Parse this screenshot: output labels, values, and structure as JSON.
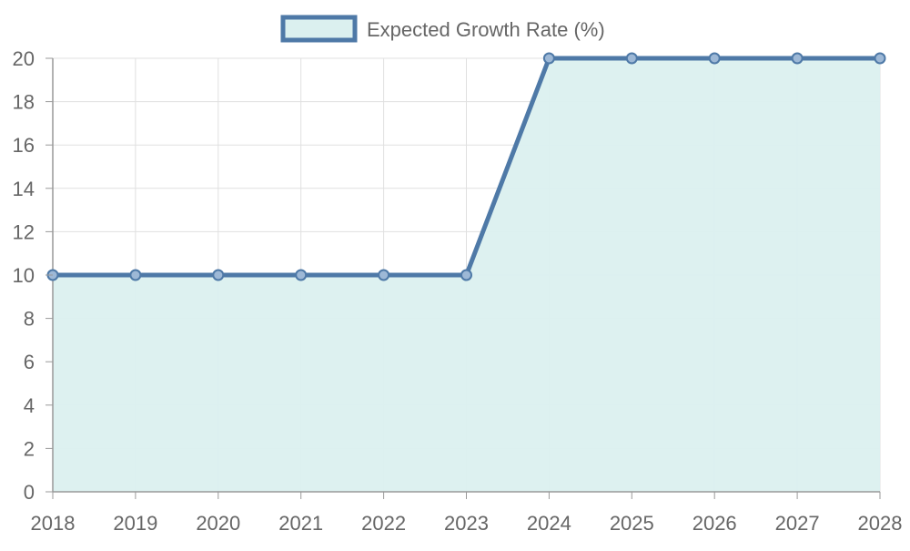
{
  "chart_data": {
    "type": "area",
    "x": [
      "2018",
      "2019",
      "2020",
      "2021",
      "2022",
      "2023",
      "2024",
      "2025",
      "2026",
      "2027",
      "2028"
    ],
    "series": [
      {
        "name": "Expected Growth Rate (%)",
        "values": [
          10,
          10,
          10,
          10,
          10,
          10,
          20,
          20,
          20,
          20,
          20
        ]
      }
    ],
    "ylim": [
      0,
      20
    ],
    "yticks": [
      "0",
      "2",
      "4",
      "6",
      "8",
      "10",
      "12",
      "14",
      "16",
      "18",
      "20"
    ],
    "grid": true,
    "legend": "top-center",
    "colors": {
      "line": "#4e79a7",
      "fill": "#dbf0ef",
      "grid": "#e0e0e0",
      "axis": "#999999",
      "text": "#666666"
    }
  }
}
